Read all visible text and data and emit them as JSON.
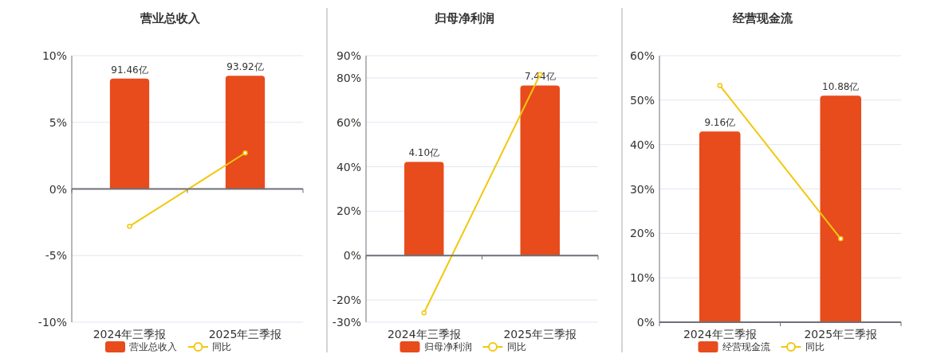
{
  "chart_data": [
    {
      "type": "bar",
      "title": "营业总收入",
      "categories": [
        "2024年三季报",
        "2025年三季报"
      ],
      "series": [
        {
          "name": "营业总收入",
          "axis": "y2",
          "color": "#e84b1c",
          "values": [
            91.46,
            93.92
          ],
          "value_labels": [
            "91.46亿",
            "93.92亿"
          ]
        },
        {
          "name": "同比",
          "type": "line",
          "color": "#f2c80f",
          "values": [
            -2.8,
            2.7
          ]
        }
      ],
      "ylim": [
        -10,
        10
      ],
      "yticks": [
        {
          "value": -10,
          "label": "-10%"
        },
        {
          "value": -5,
          "label": "-5%"
        },
        {
          "value": 0,
          "label": "0%"
        },
        {
          "value": 5,
          "label": "5%"
        },
        {
          "value": 10,
          "label": "10%"
        }
      ],
      "y2lim": [
        -110.5,
        110.5
      ],
      "tick_labels": [
        "x",
        "y"
      ],
      "grid": "y",
      "legend": "bottom",
      "marker": "circle"
    },
    {
      "type": "bar",
      "title": "归母净利润",
      "categories": [
        "2024年三季报",
        "2025年三季报"
      ],
      "series": [
        {
          "name": "归母净利润",
          "axis": "y2",
          "color": "#e84b1c",
          "values": [
            4.1,
            7.44
          ],
          "value_labels": [
            "4.10亿",
            "7.44亿"
          ]
        },
        {
          "name": "同比",
          "type": "line",
          "color": "#f2c80f",
          "values": [
            -25.8,
            81.5
          ]
        }
      ],
      "ylim": [
        -30,
        90
      ],
      "yticks": [
        {
          "value": -30,
          "label": "-30%"
        },
        {
          "value": -20,
          "label": "-20%"
        },
        {
          "value": 0,
          "label": "0%"
        },
        {
          "value": 20,
          "label": "20%"
        },
        {
          "value": 40,
          "label": "40%"
        },
        {
          "value": 60,
          "label": "60%"
        },
        {
          "value": 80,
          "label": "80%"
        },
        {
          "value": 90,
          "label": "90%"
        }
      ],
      "y2lim": [
        -2.91,
        8.74
      ],
      "tick_labels": [
        "x",
        "y"
      ],
      "grid": "y",
      "legend": "bottom",
      "marker": "circle"
    },
    {
      "type": "bar",
      "title": "经营现金流",
      "categories": [
        "2024年三季报",
        "2025年三季报"
      ],
      "series": [
        {
          "name": "经营现金流",
          "axis": "y2",
          "color": "#e84b1c",
          "values": [
            9.16,
            10.88
          ],
          "value_labels": [
            "9.16亿",
            "10.88亿"
          ]
        },
        {
          "name": "同比",
          "type": "line",
          "color": "#f2c80f",
          "values": [
            53.3,
            18.8
          ]
        }
      ],
      "ylim": [
        0,
        60
      ],
      "yticks": [
        {
          "value": 0,
          "label": "0%"
        },
        {
          "value": 10,
          "label": "10%"
        },
        {
          "value": 20,
          "label": "20%"
        },
        {
          "value": 30,
          "label": "30%"
        },
        {
          "value": 40,
          "label": "40%"
        },
        {
          "value": 50,
          "label": "50%"
        },
        {
          "value": 60,
          "label": "60%"
        }
      ],
      "y2lim": [
        0,
        12.8
      ],
      "tick_labels": [
        "x",
        "y"
      ],
      "grid": "y",
      "legend": "bottom",
      "marker": "circle"
    }
  ]
}
